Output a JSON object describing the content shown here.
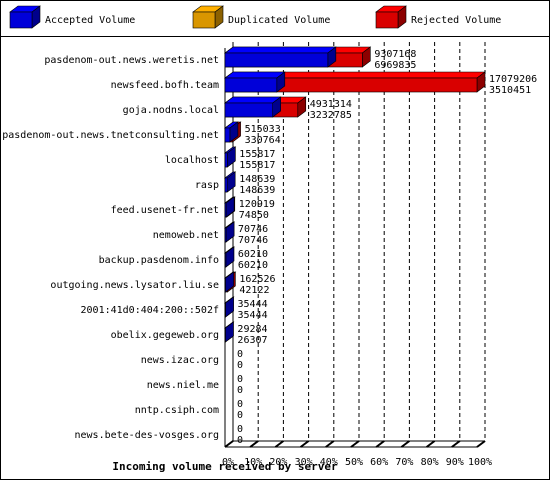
{
  "chart_data": {
    "type": "bar3d",
    "legend": [
      {
        "name": "Accepted Volume",
        "color": "#0000ff"
      },
      {
        "name": "Duplicated Volume",
        "color": "#ffb000"
      },
      {
        "name": "Rejected Volume",
        "color": "#ff0000"
      }
    ],
    "categories": [
      "pasdenom-out.news.weretis.net",
      "newsfeed.bofh.team",
      "goja.nodns.local",
      "pasdenom-out.news.tnetconsulting.net",
      "localhost",
      "rasp",
      "feed.usenet-fr.net",
      "nemoweb.net",
      "backup.pasdenom.info",
      "outgoing.news.lysator.liu.se",
      "2001:41d0:404:200::502f",
      "obelix.gegeweb.org",
      "news.izac.org",
      "news.niel.me",
      "nntp.csiph.com",
      "news.bete-des-vosges.org"
    ],
    "values": [
      9307168,
      17079206,
      4931314,
      515033,
      155817,
      148639,
      120919,
      70746,
      60210,
      162526,
      35444,
      29284,
      0,
      0,
      0,
      0
    ],
    "accepted": [
      6969835,
      3510451,
      3232785,
      330764,
      155817,
      148639,
      74850,
      70746,
      60210,
      42122,
      35444,
      26307,
      0,
      0,
      0,
      0
    ],
    "xlabel": "Incoming volume received by server",
    "xlim": [
      0,
      100
    ],
    "xticks": [
      {
        "value": 0,
        "label": "0%"
      },
      {
        "value": 10,
        "label": "10%"
      },
      {
        "value": 20,
        "label": "20%"
      },
      {
        "value": 30,
        "label": "30%"
      },
      {
        "value": 40,
        "label": "40%"
      },
      {
        "value": 50,
        "label": "50%"
      },
      {
        "value": 60,
        "label": "60%"
      },
      {
        "value": 70,
        "label": "70%"
      },
      {
        "value": 80,
        "label": "80%"
      },
      {
        "value": 90,
        "label": "90%"
      },
      {
        "value": 100,
        "label": "100%"
      }
    ],
    "grid": true
  }
}
